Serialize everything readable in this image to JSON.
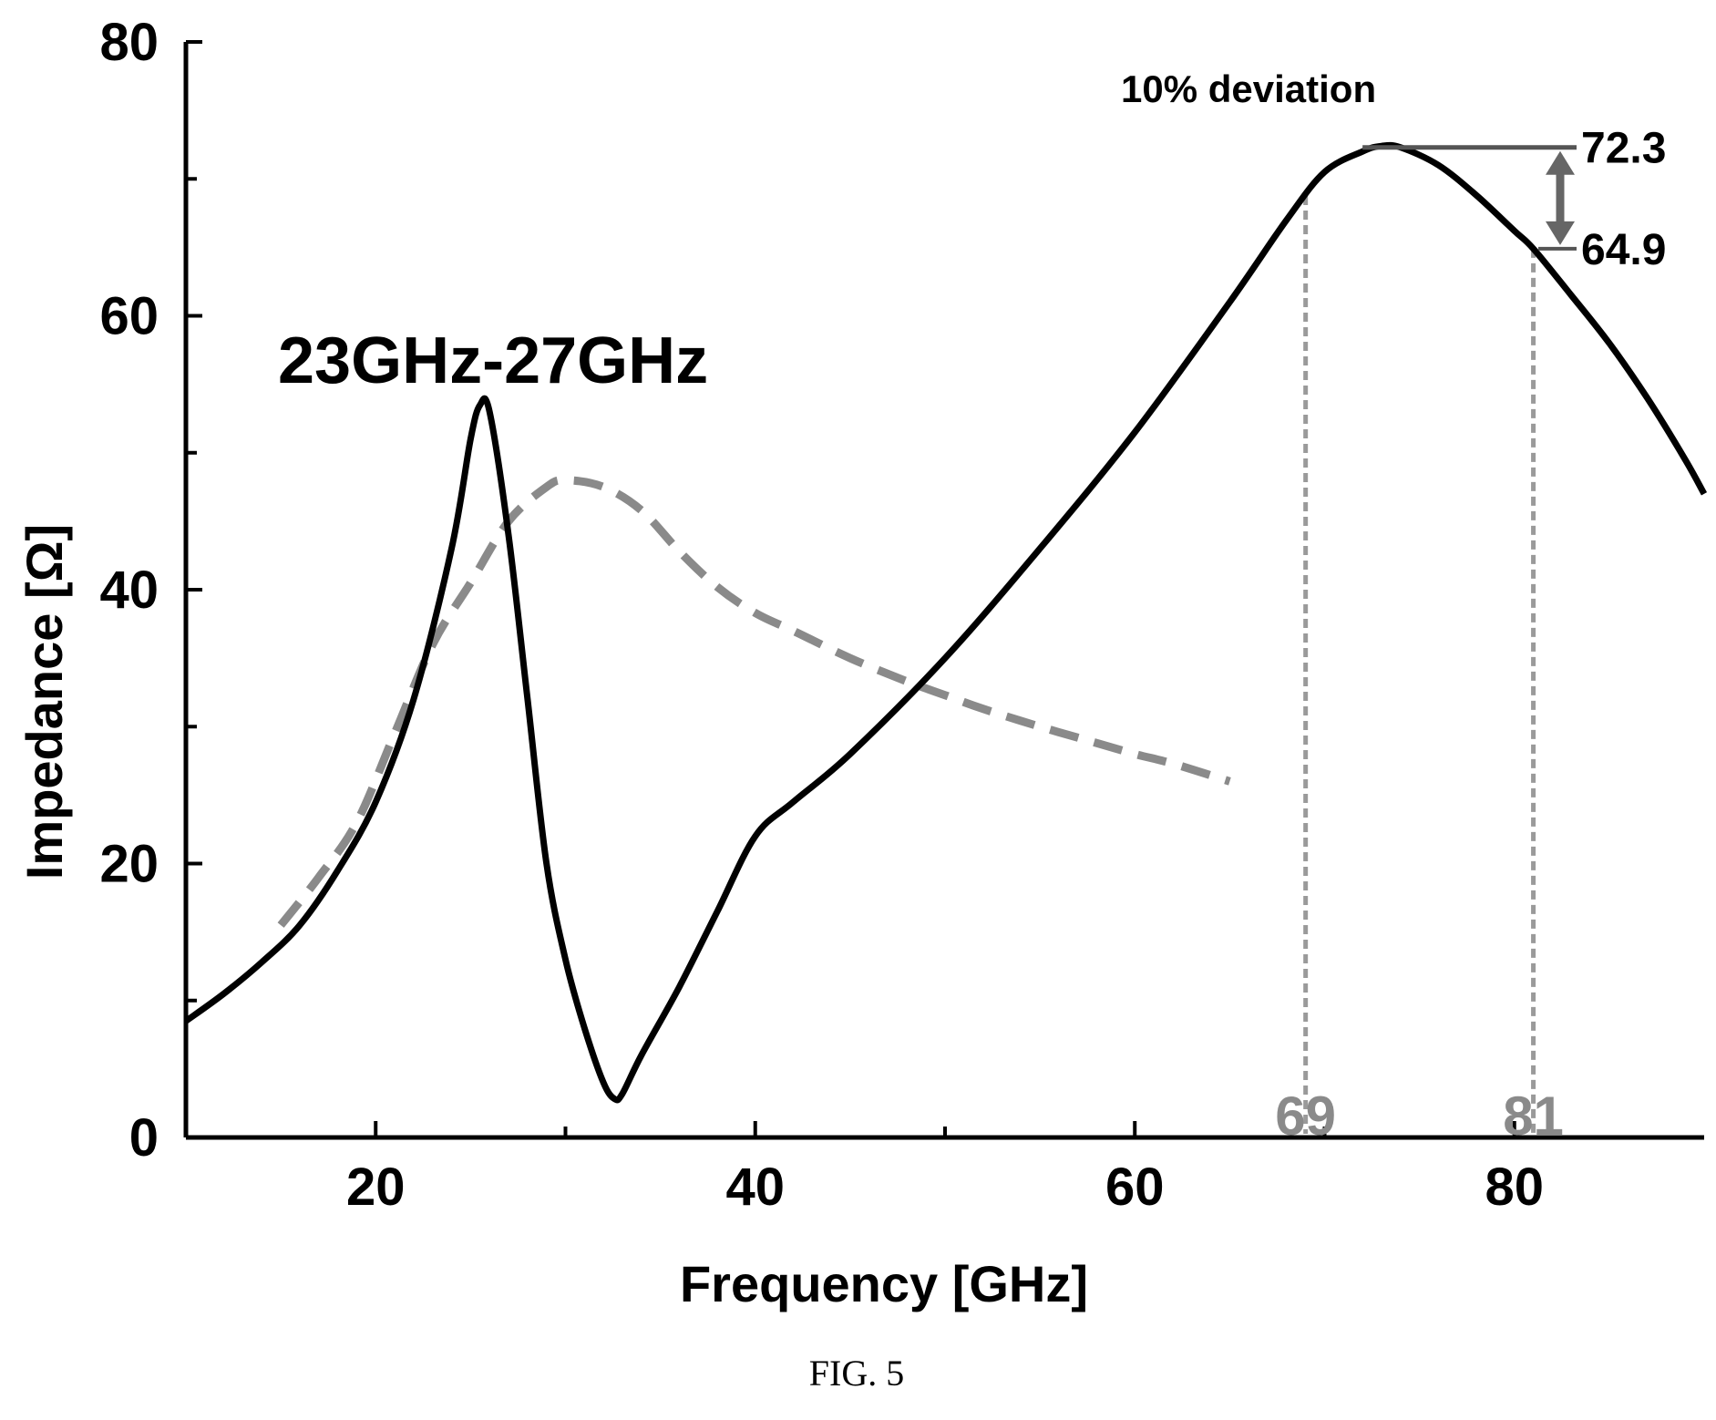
{
  "chart_data": {
    "type": "line",
    "title": "",
    "xlabel": "Frequency [GHz]",
    "ylabel": "Impedance [Ω]",
    "xlim": [
      10,
      90
    ],
    "ylim": [
      0,
      80
    ],
    "x_ticks": [
      20,
      40,
      60,
      80
    ],
    "y_ticks": [
      0,
      20,
      40,
      60,
      80
    ],
    "grid": false,
    "series": [
      {
        "style": "solid",
        "color": "#000000",
        "points": [
          [
            10,
            8.5
          ],
          [
            12,
            10.5
          ],
          [
            14,
            12.8
          ],
          [
            16,
            15.5
          ],
          [
            18,
            19.5
          ],
          [
            20,
            24.5
          ],
          [
            22,
            32
          ],
          [
            24,
            43
          ],
          [
            25,
            51
          ],
          [
            25.5,
            53.5
          ],
          [
            26,
            53
          ],
          [
            27,
            44
          ],
          [
            28,
            32
          ],
          [
            29,
            20
          ],
          [
            30,
            13
          ],
          [
            31,
            8
          ],
          [
            32,
            4
          ],
          [
            32.6,
            2.8
          ],
          [
            33,
            3.2
          ],
          [
            34,
            6
          ],
          [
            36,
            11
          ],
          [
            38,
            16.5
          ],
          [
            40,
            22
          ],
          [
            42,
            24.5
          ],
          [
            45,
            28
          ],
          [
            50,
            35
          ],
          [
            55,
            43
          ],
          [
            60,
            51.5
          ],
          [
            65,
            61
          ],
          [
            68,
            67
          ],
          [
            70,
            70.5
          ],
          [
            72,
            72
          ],
          [
            73,
            72.4
          ],
          [
            74,
            72.3
          ],
          [
            76,
            71
          ],
          [
            78,
            68.8
          ],
          [
            80,
            66.2
          ],
          [
            81,
            64.9
          ],
          [
            83,
            61.5
          ],
          [
            85,
            58
          ],
          [
            87,
            54
          ],
          [
            89,
            49.5
          ],
          [
            90,
            47
          ]
        ]
      },
      {
        "style": "dashed",
        "color": "#8a8a8a",
        "points": [
          [
            15,
            15.5
          ],
          [
            17,
            19
          ],
          [
            19,
            23
          ],
          [
            21,
            29.5
          ],
          [
            23,
            36
          ],
          [
            25,
            40.5
          ],
          [
            27,
            45
          ],
          [
            29,
            47.5
          ],
          [
            30,
            48
          ],
          [
            32,
            47.5
          ],
          [
            34,
            45.8
          ],
          [
            36,
            42.8
          ],
          [
            38,
            40.2
          ],
          [
            40,
            38.3
          ],
          [
            42,
            37
          ],
          [
            45,
            35
          ],
          [
            48,
            33.3
          ],
          [
            50,
            32.3
          ],
          [
            52,
            31.3
          ],
          [
            55,
            30
          ],
          [
            58,
            28.8
          ],
          [
            60,
            28
          ],
          [
            62,
            27.3
          ],
          [
            65,
            26
          ]
        ]
      }
    ],
    "annotations": {
      "band_label": "23GHz-27GHz",
      "deviation_label": "10% deviation",
      "peak_value": "72.3",
      "lower_value": "64.9",
      "marker_left": "69",
      "marker_right": "81"
    }
  },
  "caption": "FIG. 5"
}
